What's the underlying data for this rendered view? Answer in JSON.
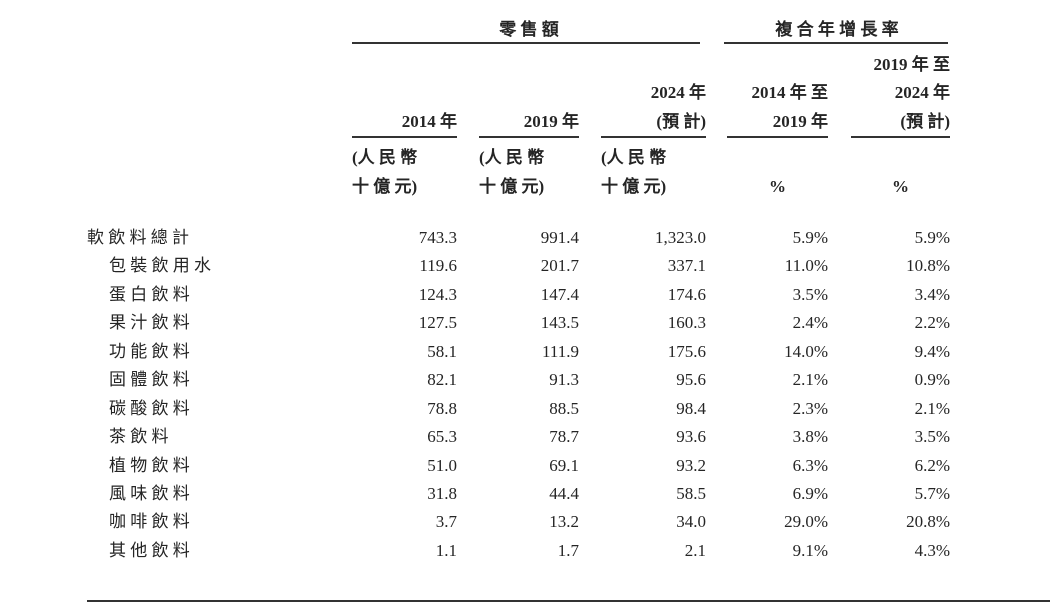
{
  "page": {
    "background_color": "#ffffff",
    "text_color": "#252525",
    "rule_color": "#333333"
  },
  "table": {
    "group_headers": [
      {
        "label": "零 售 額"
      },
      {
        "label": "複 合 年 增 長 率"
      }
    ],
    "columns": [
      {
        "year_lines": [
          "2014 年"
        ],
        "unit_lines": [
          "(人 民 幣",
          "十 億 元)"
        ]
      },
      {
        "year_lines": [
          "2019 年"
        ],
        "unit_lines": [
          "(人 民 幣",
          "十 億 元)"
        ]
      },
      {
        "year_lines": [
          "2024 年",
          "(預 計)"
        ],
        "unit_lines": [
          "(人 民 幣",
          "十 億 元)"
        ]
      },
      {
        "year_lines": [
          "2014 年 至",
          "2019 年"
        ],
        "unit_lines": [
          "%"
        ]
      },
      {
        "year_lines": [
          "2019 年 至",
          "2024 年",
          "(預 計)"
        ],
        "unit_lines": [
          "%"
        ]
      }
    ],
    "rows": [
      {
        "label": "軟 飲 料 總 計",
        "indent": false,
        "values": [
          "743.3",
          "991.4",
          "1,323.0",
          "5.9%",
          "5.9%"
        ]
      },
      {
        "label": "包 裝 飲 用 水",
        "indent": true,
        "values": [
          "119.6",
          "201.7",
          "337.1",
          "11.0%",
          "10.8%"
        ]
      },
      {
        "label": "蛋 白 飲 料",
        "indent": true,
        "values": [
          "124.3",
          "147.4",
          "174.6",
          "3.5%",
          "3.4%"
        ]
      },
      {
        "label": "果 汁 飲 料",
        "indent": true,
        "values": [
          "127.5",
          "143.5",
          "160.3",
          "2.4%",
          "2.2%"
        ]
      },
      {
        "label": "功 能 飲 料",
        "indent": true,
        "values": [
          "58.1",
          "111.9",
          "175.6",
          "14.0%",
          "9.4%"
        ]
      },
      {
        "label": "固 體 飲 料",
        "indent": true,
        "values": [
          "82.1",
          "91.3",
          "95.6",
          "2.1%",
          "0.9%"
        ]
      },
      {
        "label": "碳 酸 飲 料",
        "indent": true,
        "values": [
          "78.8",
          "88.5",
          "98.4",
          "2.3%",
          "2.1%"
        ]
      },
      {
        "label": "茶 飲 料",
        "indent": true,
        "values": [
          "65.3",
          "78.7",
          "93.6",
          "3.8%",
          "3.5%"
        ]
      },
      {
        "label": "植 物 飲 料",
        "indent": true,
        "values": [
          "51.0",
          "69.1",
          "93.2",
          "6.3%",
          "6.2%"
        ]
      },
      {
        "label": "風 味 飲 料",
        "indent": true,
        "values": [
          "31.8",
          "44.4",
          "58.5",
          "6.9%",
          "5.7%"
        ]
      },
      {
        "label": "咖 啡 飲 料",
        "indent": true,
        "values": [
          "3.7",
          "13.2",
          "34.0",
          "29.0%",
          "20.8%"
        ]
      },
      {
        "label": "其 他 飲 料",
        "indent": true,
        "values": [
          "1.1",
          "1.7",
          "2.1",
          "9.1%",
          "4.3%"
        ]
      }
    ]
  }
}
